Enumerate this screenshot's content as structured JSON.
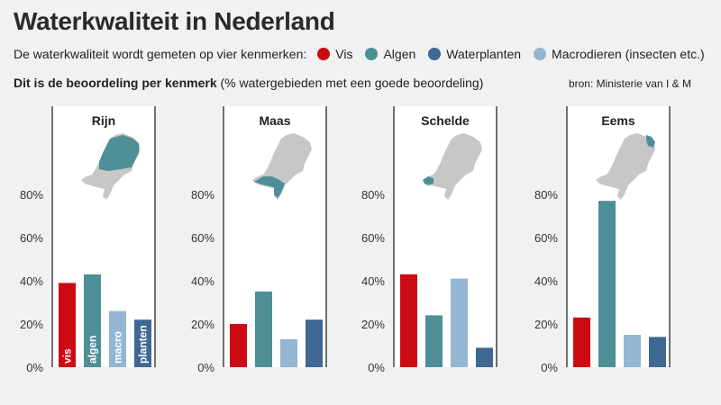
{
  "header": {
    "title": "Waterkwaliteit in Nederland",
    "legend_intro": "De waterkwaliteit wordt gemeten op vier kenmerken:",
    "subtitle_bold": "Dit is de beoordeling per kenmerk",
    "subtitle_rest": "(% watergebieden met een goede beoordeling)",
    "source": "bron: Ministerie van I & M"
  },
  "legend": [
    {
      "label": "Vis",
      "color": "#cc0a14"
    },
    {
      "label": "Algen",
      "color": "#4e8f97"
    },
    {
      "label": "Waterplanten",
      "color": "#3f6893"
    },
    {
      "label": "Macrodieren (insecten etc.)",
      "color": "#93b6d3"
    }
  ],
  "chart_data": {
    "type": "bar",
    "categories": [
      "vis",
      "algen",
      "macro",
      "planten"
    ],
    "colors": [
      "#cc0a14",
      "#4e8f97",
      "#93b6d3",
      "#3f6893"
    ],
    "ylim": [
      0,
      80
    ],
    "yticks": [
      "0%",
      "20%",
      "40%",
      "60%",
      "80%"
    ],
    "grid": false,
    "panels": [
      {
        "name": "Rijn",
        "values": [
          39,
          43,
          26,
          22
        ],
        "show_bar_labels": true
      },
      {
        "name": "Maas",
        "values": [
          20,
          35,
          13,
          22
        ],
        "show_bar_labels": false
      },
      {
        "name": "Schelde",
        "values": [
          43,
          24,
          41,
          9
        ],
        "show_bar_labels": false
      },
      {
        "name": "Eems",
        "values": [
          23,
          77,
          15,
          14
        ],
        "show_bar_labels": false
      }
    ]
  },
  "map_colors": {
    "land": "#c7c7c7",
    "highlight": "#4e8f97"
  }
}
